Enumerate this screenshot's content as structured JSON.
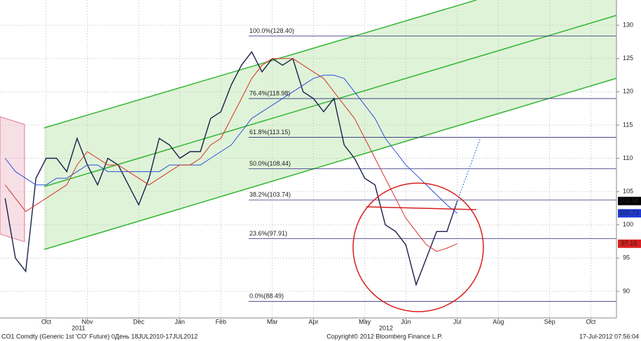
{
  "chart_data": {
    "type": "line",
    "categories": [
      null,
      null,
      null,
      null,
      "Oct",
      null,
      null,
      null,
      "Nov",
      null,
      null,
      null,
      null,
      "Dec",
      null,
      null,
      null,
      "Jan",
      null,
      null,
      null,
      "Feb",
      null,
      null,
      null,
      null,
      "Mar",
      null,
      null,
      null,
      "Apr",
      null,
      null,
      null,
      null,
      "May",
      null,
      null,
      null,
      "Jun",
      null,
      null,
      null,
      null,
      "Jul",
      null,
      null,
      null,
      "Aug",
      null,
      null,
      null,
      null,
      "Sep",
      null,
      null,
      null,
      "Oct",
      null,
      null
    ],
    "years": [
      "2011",
      "2012"
    ],
    "series": [
      {
        "color": "#1a1f4a",
        "values": [
          104,
          95,
          93,
          107,
          110,
          110,
          108,
          113,
          109,
          106,
          110,
          109,
          106,
          103,
          107,
          113,
          112,
          110,
          111,
          111,
          116,
          117,
          121,
          124,
          126,
          123,
          125,
          124,
          125,
          120,
          119,
          117,
          119,
          112,
          110,
          107,
          106,
          100,
          99,
          97,
          91,
          95,
          99,
          99,
          103.58,
          null,
          null,
          null,
          null,
          null,
          null,
          null,
          null,
          null,
          null,
          null,
          null,
          null,
          null,
          null
        ],
        "tag_fill": "#000000"
      },
      {
        "color": "#2f4fd8",
        "values": [
          110,
          108,
          107,
          106,
          106,
          107,
          107,
          108,
          109,
          109,
          108,
          108,
          108,
          108,
          108,
          108,
          109,
          109,
          109,
          109,
          110,
          111,
          112,
          114,
          116,
          117,
          118,
          119,
          120,
          121,
          122,
          122.5,
          122.5,
          122,
          120,
          118,
          116,
          113,
          111,
          109,
          107.5,
          106,
          104.5,
          103,
          101.73,
          null,
          null,
          null,
          null,
          null,
          null,
          null,
          null,
          null,
          null,
          null,
          null,
          null,
          null,
          null
        ],
        "tag_fill": "#1e3ad6"
      },
      {
        "color": "#d8322a",
        "values": [
          106,
          104,
          102,
          103,
          104,
          105,
          106,
          109,
          111,
          110,
          109,
          109,
          108,
          107,
          106,
          107,
          108,
          109,
          109,
          110,
          112,
          113,
          116,
          119,
          122,
          124,
          125,
          125,
          125,
          124,
          123,
          122,
          120,
          118,
          116,
          113,
          110,
          107,
          104,
          101,
          99,
          97,
          96,
          96.5,
          97.16,
          null,
          null,
          null,
          null,
          null,
          null,
          null,
          null,
          null,
          null,
          null,
          null,
          null,
          null,
          null
        ],
        "tag_fill": "#d81e1e"
      }
    ],
    "ylim": [
      86,
      133.8
    ],
    "yticks": [
      90,
      95,
      100,
      105,
      110,
      115,
      120,
      125,
      130
    ],
    "grid": true,
    "fib_levels": [
      {
        "value": 128.4,
        "label": "100.0%(128.40)"
      },
      {
        "value": 118.98,
        "label": "76.4%(118.98)"
      },
      {
        "value": 113.15,
        "label": "61.8%(113.15)"
      },
      {
        "value": 108.44,
        "label": "50.0%(108.44)"
      },
      {
        "value": 103.74,
        "label": "38.2%(103.74)"
      },
      {
        "value": 97.91,
        "label": "23.6%(97.91)"
      },
      {
        "value": 88.49,
        "label": "0.0%(88.49)"
      }
    ],
    "footer": {
      "left": "CO1 Comdty (Generic 1st 'CO' Future) 0День 18JUL2010-17JUL2012",
      "center": "Copyright© 2012 Bloomberg Finance L.P.",
      "right": "17-Jul-2012 07:56:04"
    }
  }
}
